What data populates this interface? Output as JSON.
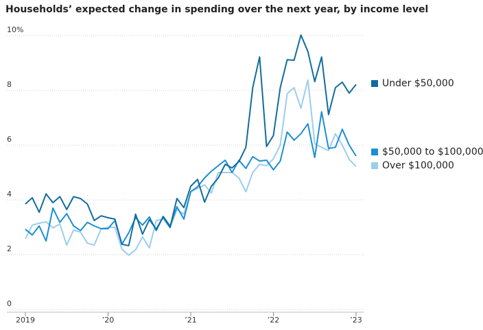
{
  "chart_data": {
    "type": "line",
    "title": "Households’ expected change in spending over the next year, by income level",
    "x": [
      2019,
      2019.083,
      2019.167,
      2019.25,
      2019.333,
      2019.417,
      2019.5,
      2019.583,
      2019.667,
      2019.75,
      2019.833,
      2019.917,
      2020,
      2020.083,
      2020.167,
      2020.25,
      2020.333,
      2020.417,
      2020.5,
      2020.583,
      2020.667,
      2020.75,
      2020.833,
      2020.917,
      2021,
      2021.083,
      2021.167,
      2021.25,
      2021.333,
      2021.417,
      2021.5,
      2021.583,
      2021.667,
      2021.75,
      2021.833,
      2021.917,
      2022,
      2022.083,
      2022.167,
      2022.25,
      2022.333,
      2022.417,
      2022.5,
      2022.583,
      2022.667,
      2022.75,
      2022.833,
      2022.917,
      2023
    ],
    "series": [
      {
        "name": "Under $50,000",
        "color": "#106c9e",
        "values": [
          3.85,
          4.08,
          3.55,
          4.22,
          3.9,
          4.12,
          3.65,
          4.12,
          4.05,
          3.85,
          3.25,
          3.42,
          3.35,
          3.3,
          2.38,
          2.33,
          3.48,
          2.75,
          3.28,
          2.93,
          3.38,
          3.0,
          4.05,
          3.72,
          4.5,
          4.75,
          3.92,
          4.5,
          4.8,
          5.3,
          5.17,
          5.4,
          5.92,
          8.1,
          9.22,
          5.95,
          6.35,
          8.1,
          9.12,
          9.1,
          10.02,
          9.42,
          8.32,
          9.22,
          7.12,
          8.1,
          8.3,
          7.9,
          8.22
        ]
      },
      {
        "name": "$50,000 to $100,000",
        "color": "#1b8fd1",
        "values": [
          2.93,
          2.72,
          3.05,
          2.5,
          3.7,
          3.18,
          3.5,
          3.05,
          2.88,
          3.18,
          3.05,
          2.95,
          2.95,
          3.25,
          2.38,
          2.8,
          3.35,
          3.08,
          3.38,
          2.88,
          3.4,
          3.05,
          3.75,
          3.3,
          4.3,
          4.48,
          4.8,
          5.05,
          5.25,
          5.45,
          5.0,
          5.45,
          5.15,
          5.58,
          5.42,
          5.45,
          5.1,
          5.42,
          6.48,
          6.18,
          6.42,
          6.78,
          5.55,
          7.22,
          5.88,
          5.92,
          6.58,
          6.0,
          5.6
        ]
      },
      {
        "name": "Over $100,000",
        "color": "#9ccdee",
        "values": [
          2.58,
          3.08,
          3.15,
          3.2,
          2.98,
          3.12,
          2.35,
          2.9,
          2.82,
          2.42,
          2.35,
          2.95,
          3.0,
          3.0,
          2.2,
          1.98,
          2.18,
          2.65,
          2.25,
          3.25,
          3.3,
          2.98,
          3.65,
          3.48,
          4.3,
          4.42,
          4.55,
          4.25,
          5.0,
          5.0,
          5.0,
          4.8,
          4.3,
          5.0,
          5.3,
          5.25,
          5.5,
          6.0,
          7.88,
          8.1,
          7.35,
          8.38,
          6.05,
          5.92,
          5.8,
          6.42,
          6.0,
          5.48,
          5.22
        ]
      }
    ],
    "xlim": [
      2019,
      2023
    ],
    "xticks": [
      {
        "value": 2019,
        "label": "2019"
      },
      {
        "value": 2020,
        "label": "’20"
      },
      {
        "value": 2021,
        "label": "’21"
      },
      {
        "value": 2022,
        "label": "’22"
      },
      {
        "value": 2023,
        "label": "’23"
      }
    ],
    "ylim": [
      0,
      10
    ],
    "yticks": [
      0,
      2,
      4,
      6,
      8,
      {
        "value": 10,
        "label": "10%"
      }
    ],
    "grid": true
  }
}
